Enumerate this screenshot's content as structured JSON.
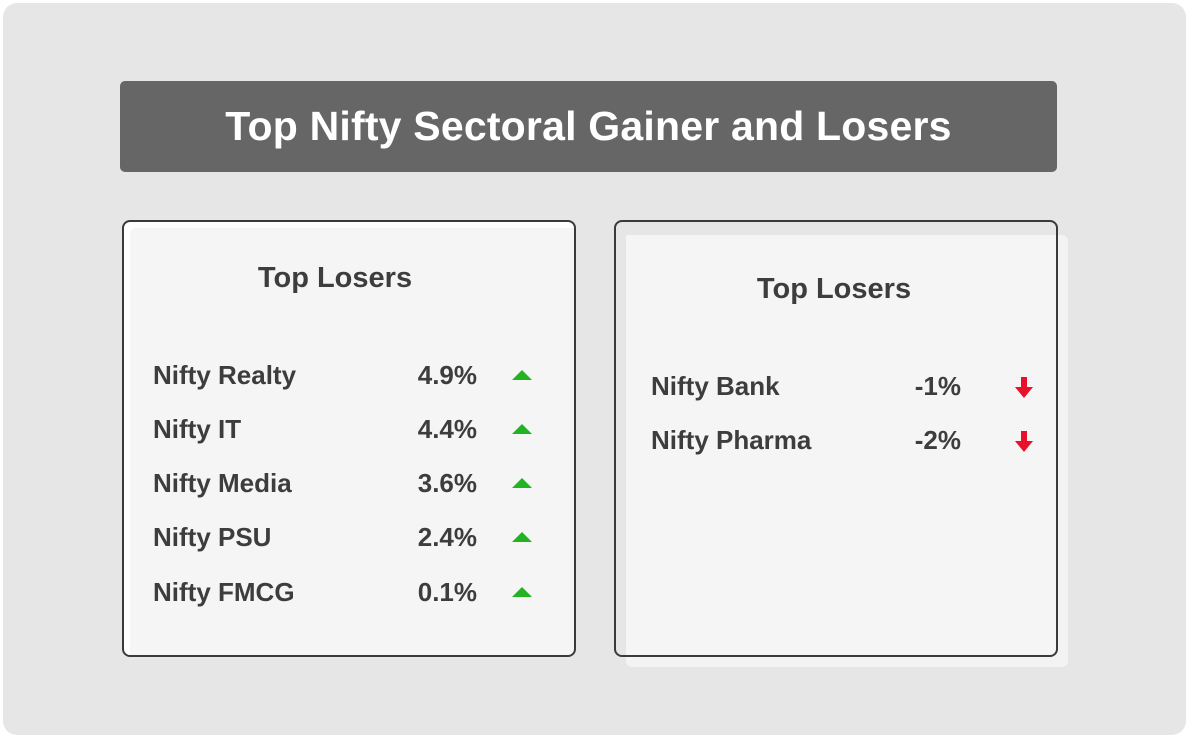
{
  "title": "Top Nifty Sectoral Gainer and Losers",
  "left_card": {
    "heading": "Top Losers",
    "rows": [
      {
        "name": "Nifty Realty",
        "value": "4.9%",
        "icon": "triangle-up-icon"
      },
      {
        "name": "Nifty IT",
        "value": "4.4%",
        "icon": "triangle-up-icon"
      },
      {
        "name": "Nifty Media",
        "value": "3.6%",
        "icon": "triangle-up-icon"
      },
      {
        "name": "Nifty PSU",
        "value": "2.4%",
        "icon": "triangle-up-icon"
      },
      {
        "name": "Nifty FMCG",
        "value": "0.1%",
        "icon": "triangle-up-icon"
      }
    ]
  },
  "right_card": {
    "heading": "Top Losers",
    "rows": [
      {
        "name": "Nifty Bank",
        "value": "-1%",
        "icon": "arrow-down-icon"
      },
      {
        "name": "Nifty Pharma",
        "value": "-2%",
        "icon": "arrow-down-icon"
      }
    ]
  },
  "colors": {
    "banner": "#666666",
    "background": "#e6e6e6",
    "card": "#f5f5f5",
    "gain": "#22b322",
    "loss": "#e8102a",
    "text": "#3d3d3d"
  }
}
